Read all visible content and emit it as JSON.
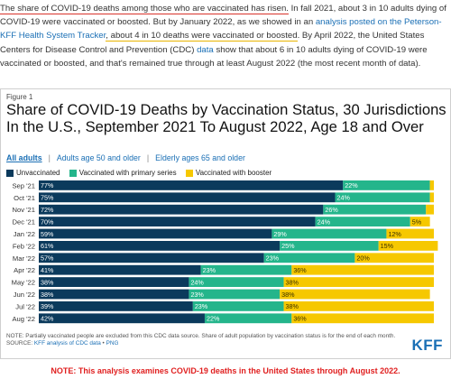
{
  "intro": {
    "p1": "The share of COVID-19 deaths among those who are vaccinated has risen.",
    "p2": " In fall 2021, about 3 in 10 adults dying of COVID-19 were vaccinated or boosted. But by January 2022, as we showed in an ",
    "p3": "analysis posted on the Peterson-KFF Health System Tracker",
    "p4": ", about 4 in 10 deaths were vaccinated or boosted",
    "p5": ". By April 2022, the United States Centers for Disease Control and Prevention (CDC) ",
    "p6": "data",
    "p7": " show that about 6 in 10 adults dying of COVID-19 were vaccinated or boosted, and that's remained true through at least August 2022 (the most recent month of data)."
  },
  "figure": {
    "label": "Figure 1",
    "title": "Share of COVID-19 Deaths by Vaccination Status, 30 Jurisdictions In the U.S., September 2021 To August 2022, Age 18 and Over",
    "tabs": [
      "All adults",
      "Adults age 50 and older",
      "Elderly ages 65 and older"
    ],
    "note_line": "NOTE: Partially vaccinated people are excluded from this CDC data source. Share of adult population by vaccination status is for the end of each month.",
    "source_prefix": "SOURCE: ",
    "source_link": "KFF analysis of CDC data",
    "source_sep": " • ",
    "source_png": "PNG",
    "logo": "KFF"
  },
  "footer_note": "NOTE: This analysis examines COVID-19 deaths in the United States through August 2022.",
  "colors": {
    "unvaccinated": "#0b3a5c",
    "primary": "#24b58b",
    "booster": "#f6c800",
    "link": "#1a6fb5",
    "alert": "#e02020"
  },
  "chart_data": {
    "type": "bar",
    "orientation": "horizontal",
    "stacked": true,
    "categories": [
      "Sep '21",
      "Oct '21",
      "Nov '21",
      "Dec '21",
      "Jan '22",
      "Feb '22",
      "Mar '22",
      "Apr '22",
      "May '22",
      "Jun '22",
      "Jul '22",
      "Aug '22"
    ],
    "series": [
      {
        "name": "Unvaccinated",
        "values": [
          77,
          75,
          72,
          70,
          59,
          61,
          57,
          41,
          38,
          38,
          39,
          42
        ]
      },
      {
        "name": "Vaccinated with primary series",
        "values": [
          22,
          24,
          26,
          24,
          29,
          25,
          23,
          23,
          24,
          23,
          23,
          22
        ]
      },
      {
        "name": "Vaccinated with booster",
        "values": [
          1,
          1,
          2,
          5,
          12,
          15,
          20,
          36,
          38,
          38,
          38,
          36
        ]
      }
    ],
    "data_labels": [
      [
        "77%",
        "22%",
        ""
      ],
      [
        "75%",
        "24%",
        ""
      ],
      [
        "72%",
        "26%",
        ""
      ],
      [
        "70%",
        "24%",
        "5%"
      ],
      [
        "59%",
        "29%",
        "12%"
      ],
      [
        "61%",
        "25%",
        "15%"
      ],
      [
        "57%",
        "23%",
        "20%"
      ],
      [
        "41%",
        "23%",
        "36%"
      ],
      [
        "38%",
        "24%",
        "38%"
      ],
      [
        "38%",
        "23%",
        "38%"
      ],
      [
        "39%",
        "23%",
        "38%"
      ],
      [
        "42%",
        "22%",
        "36%"
      ]
    ],
    "xlim": [
      0,
      100
    ],
    "legend_position": "top-left",
    "grid": false
  }
}
